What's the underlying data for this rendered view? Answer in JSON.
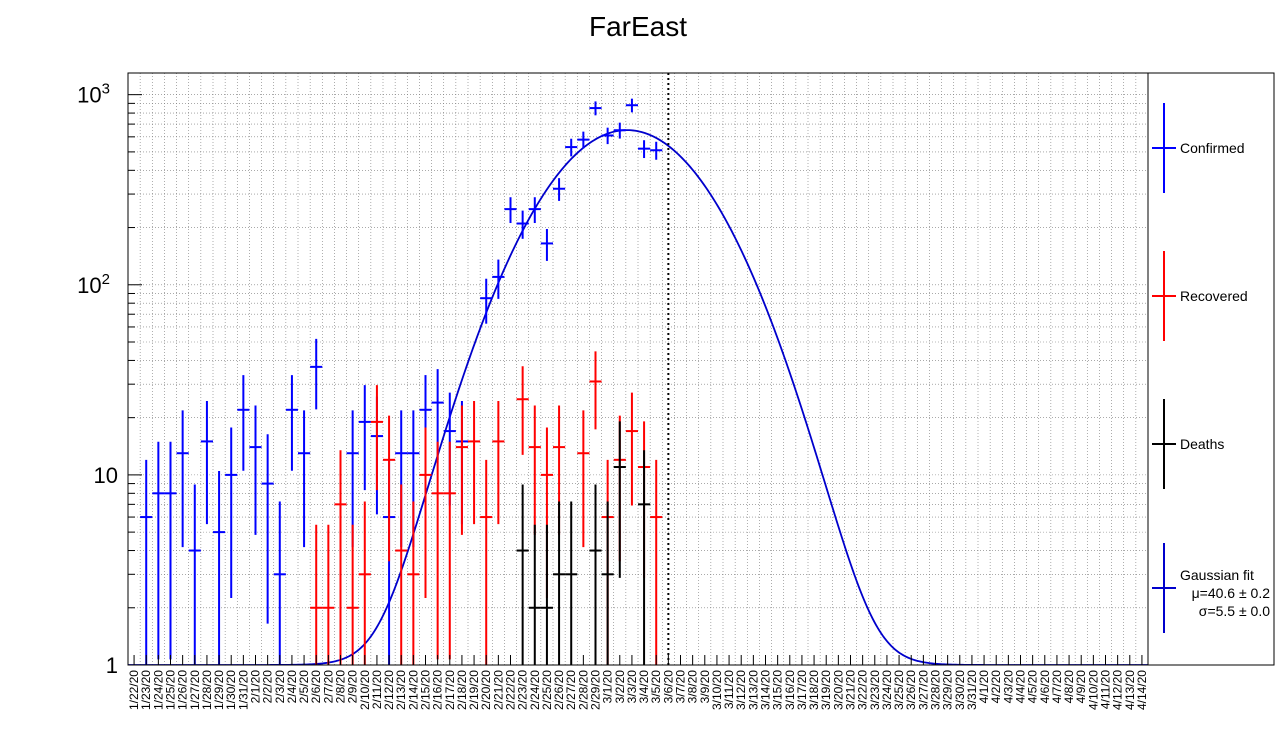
{
  "chart_data": {
    "type": "scatter",
    "title": "FarEast",
    "xlabel": "",
    "ylabel": "",
    "yscale": "log",
    "ylim": [
      1,
      1300
    ],
    "y_ticks": [
      {
        "value": 1000,
        "base": "10",
        "exp": "3"
      },
      {
        "value": 100,
        "base": "10",
        "exp": "2"
      },
      {
        "value": 10,
        "base": "10",
        "exp": ""
      },
      {
        "value": 1,
        "base": "1",
        "exp": ""
      }
    ],
    "grid": true,
    "legend_position": "right",
    "colors": {
      "confirmed": "#0000ff",
      "recovered": "#ff0000",
      "deaths": "#000000",
      "fit": "#0000cc"
    },
    "x_categories": [
      "1/22/20",
      "1/23/20",
      "1/24/20",
      "1/25/20",
      "1/26/20",
      "1/27/20",
      "1/28/20",
      "1/29/20",
      "1/30/20",
      "1/31/20",
      "2/1/20",
      "2/2/20",
      "2/3/20",
      "2/4/20",
      "2/5/20",
      "2/6/20",
      "2/7/20",
      "2/8/20",
      "2/9/20",
      "2/10/20",
      "2/11/20",
      "2/12/20",
      "2/13/20",
      "2/14/20",
      "2/15/20",
      "2/16/20",
      "2/17/20",
      "2/18/20",
      "2/19/20",
      "2/20/20",
      "2/21/20",
      "2/22/20",
      "2/23/20",
      "2/24/20",
      "2/25/20",
      "2/26/20",
      "2/27/20",
      "2/28/20",
      "2/29/20",
      "3/1/20",
      "3/2/20",
      "3/3/20",
      "3/4/20",
      "3/5/20",
      "3/6/20",
      "3/7/20",
      "3/8/20",
      "3/9/20",
      "3/10/20",
      "3/11/20",
      "3/12/20",
      "3/13/20",
      "3/14/20",
      "3/15/20",
      "3/16/20",
      "3/17/20",
      "3/18/20",
      "3/19/20",
      "3/20/20",
      "3/21/20",
      "3/22/20",
      "3/23/20",
      "3/24/20",
      "3/25/20",
      "3/26/20",
      "3/27/20",
      "3/28/20",
      "3/29/20",
      "3/30/20",
      "3/31/20",
      "4/1/20",
      "4/2/20",
      "4/3/20",
      "4/4/20",
      "4/5/20",
      "4/6/20",
      "4/7/20",
      "4/8/20",
      "4/9/20",
      "4/10/20",
      "4/11/20",
      "4/12/20",
      "4/13/20",
      "4/14/20"
    ],
    "series": [
      {
        "name": "Confirmed",
        "key": "confirmed",
        "values": [
          null,
          6,
          8,
          8,
          13,
          4,
          15,
          5,
          10,
          22,
          14,
          9,
          3,
          22,
          13,
          37,
          null,
          null,
          13,
          19,
          16,
          6,
          13,
          13,
          22,
          24,
          17,
          15,
          null,
          85,
          110,
          250,
          210,
          250,
          165,
          320,
          530,
          580,
          850,
          610,
          650,
          880,
          520,
          510,
          null,
          null,
          null,
          null,
          null,
          null,
          null,
          null,
          null,
          null,
          null,
          null,
          null,
          null,
          null,
          null,
          null,
          null,
          null,
          null,
          null,
          null,
          null,
          null,
          null,
          null,
          null,
          null,
          null,
          null,
          null,
          null,
          null,
          null,
          null,
          null,
          null,
          null,
          null,
          null
        ]
      },
      {
        "name": "Recovered",
        "key": "recovered",
        "values": [
          null,
          null,
          null,
          null,
          null,
          null,
          null,
          null,
          null,
          null,
          null,
          null,
          null,
          null,
          null,
          2,
          2,
          7,
          2,
          3,
          19,
          12,
          4,
          3,
          10,
          8,
          8,
          14,
          15,
          6,
          15,
          null,
          25,
          14,
          10,
          14,
          null,
          13,
          31,
          6,
          12,
          17,
          11,
          6,
          null,
          null,
          null,
          null,
          null,
          null,
          null,
          null,
          null,
          null,
          null,
          null,
          null,
          null,
          null,
          null,
          null,
          null,
          null,
          null,
          null,
          null,
          null,
          null,
          null,
          null,
          null,
          null,
          null,
          null,
          null,
          null,
          null,
          null,
          null,
          null,
          null,
          null,
          null,
          null
        ]
      },
      {
        "name": "Deaths",
        "key": "deaths",
        "values": [
          null,
          null,
          null,
          null,
          null,
          null,
          null,
          null,
          null,
          null,
          null,
          null,
          null,
          null,
          null,
          null,
          null,
          null,
          null,
          null,
          null,
          null,
          null,
          null,
          null,
          null,
          null,
          null,
          null,
          null,
          null,
          null,
          4,
          2,
          2,
          3,
          3,
          null,
          4,
          3,
          11,
          null,
          7,
          null,
          null,
          null,
          null,
          null,
          null,
          null,
          null,
          null,
          null,
          null,
          null,
          null,
          null,
          null,
          null,
          null,
          null,
          null,
          null,
          null,
          null,
          null,
          null,
          null,
          null,
          null,
          null,
          null,
          null,
          null,
          null,
          null,
          null,
          null,
          null,
          null,
          null,
          null,
          null,
          null
        ]
      }
    ],
    "fit": {
      "name": "Gaussian fit",
      "mu": 40.6,
      "sigma": 5.5,
      "amplitude": 650,
      "baseline": 1
    },
    "cutoff_x_index": 44,
    "legend": [
      {
        "label": "Confirmed",
        "key": "confirmed"
      },
      {
        "label": "Recovered",
        "key": "recovered"
      },
      {
        "label": "Deaths",
        "key": "deaths"
      },
      {
        "label": "Gaussian fit",
        "key": "fit",
        "lines": [
          "μ=40.6 ± 0.2",
          "σ=5.5 ± 0.0"
        ]
      }
    ]
  }
}
